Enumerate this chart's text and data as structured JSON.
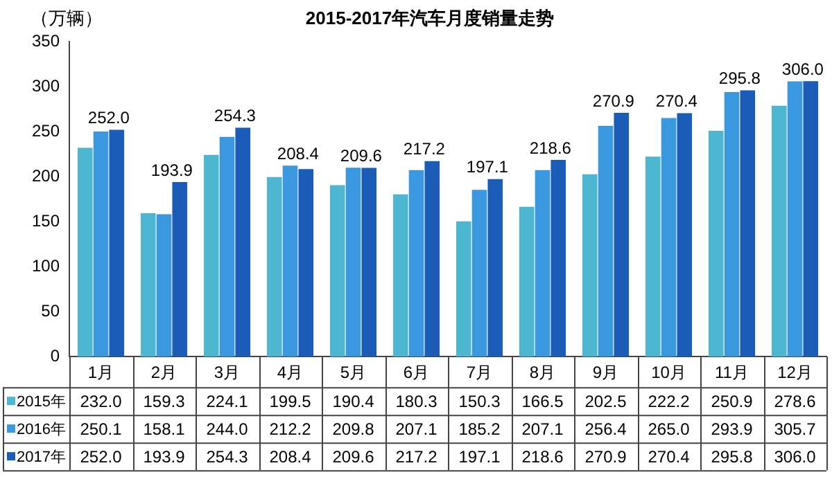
{
  "chart_data": {
    "type": "bar",
    "title": "2015-2017年汽车月度销量走势",
    "ylabel": "（万辆）",
    "categories": [
      "1月",
      "2月",
      "3月",
      "4月",
      "5月",
      "6月",
      "7月",
      "8月",
      "9月",
      "10月",
      "11月",
      "12月"
    ],
    "series": [
      {
        "name": "2015年",
        "color": "#4db6d0",
        "values": [
          232.0,
          159.3,
          224.1,
          199.5,
          190.4,
          180.3,
          150.3,
          166.5,
          202.5,
          222.2,
          250.9,
          278.6
        ],
        "value_labels": [
          "232.0",
          "159.3",
          "224.1",
          "199.5",
          "190.4",
          "180.3",
          "150.3",
          "166.5",
          "202.5",
          "222.2",
          "250.9",
          "278.6"
        ]
      },
      {
        "name": "2016年",
        "color": "#3a98e0",
        "values": [
          250.1,
          158.1,
          244.0,
          212.2,
          209.8,
          207.1,
          185.2,
          207.1,
          256.4,
          265.0,
          293.9,
          305.7
        ],
        "value_labels": [
          "250.1",
          "158.1",
          "244.0",
          "212.2",
          "209.8",
          "207.1",
          "185.2",
          "207.1",
          "256.4",
          "265.0",
          "293.9",
          "305.7"
        ]
      },
      {
        "name": "2017年",
        "color": "#1a5cb8",
        "values": [
          252.0,
          193.9,
          254.3,
          208.4,
          209.6,
          217.2,
          197.1,
          218.6,
          270.9,
          270.4,
          295.8,
          306.0
        ],
        "value_labels": [
          "252.0",
          "193.9",
          "254.3",
          "208.4",
          "209.6",
          "217.2",
          "197.1",
          "218.6",
          "270.9",
          "270.4",
          "295.8",
          "306.0"
        ]
      }
    ],
    "annotations": [
      "252.0",
      "193.9",
      "254.3",
      "208.4",
      "209.6",
      "217.2",
      "197.1",
      "218.6",
      "270.9",
      "270.4",
      "295.8",
      "306.0"
    ],
    "ylim": [
      0,
      350
    ],
    "yticks": [
      0,
      50,
      100,
      150,
      200,
      250,
      300,
      350
    ],
    "grid": false,
    "legend": "bottom"
  }
}
